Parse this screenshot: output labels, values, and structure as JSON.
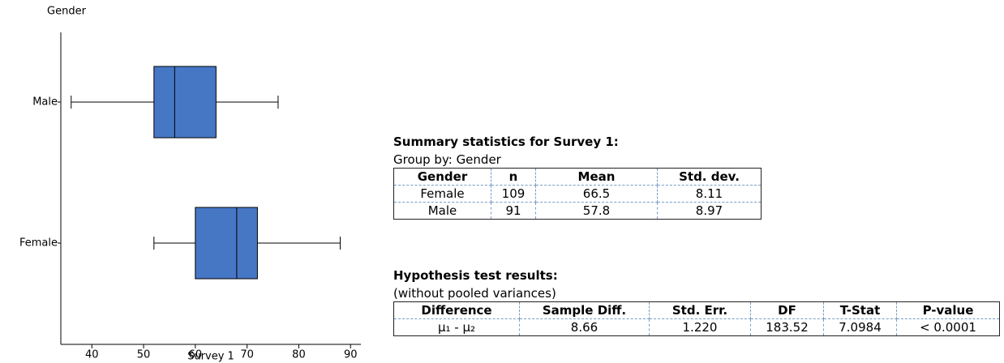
{
  "chart_data": {
    "type": "boxplot",
    "orientation": "horizontal",
    "y_label": "Gender",
    "x_label": "Survey 1",
    "color": "#4677c5",
    "categories": [
      "Male",
      "Female"
    ],
    "boxes": [
      {
        "min": 36,
        "q1": 52,
        "median": 56,
        "q3": 64,
        "max": 76
      },
      {
        "min": 52,
        "q1": 60,
        "median": 68,
        "q3": 72,
        "max": 88
      }
    ],
    "xlim": [
      34,
      92
    ],
    "xticks": [
      40,
      50,
      60,
      70,
      80,
      90
    ]
  },
  "summary": {
    "title": "Summary statistics for Survey 1:",
    "subtitle": "Group by: Gender",
    "columns": [
      "Gender",
      "n",
      "Mean",
      "Std. dev."
    ],
    "rows": [
      [
        "Female",
        "109",
        "66.5",
        "8.11"
      ],
      [
        "Male",
        "91",
        "57.8",
        "8.97"
      ]
    ]
  },
  "hypothesis": {
    "title": "Hypothesis test results:",
    "subtitle": "(without pooled variances)",
    "columns": [
      "Difference",
      "Sample Diff.",
      "Std. Err.",
      "DF",
      "T-Stat",
      "P-value"
    ],
    "rows": [
      [
        "μ₁ - μ₂",
        "8.66",
        "1.220",
        "183.52",
        "7.0984",
        "< 0.0001"
      ]
    ]
  }
}
